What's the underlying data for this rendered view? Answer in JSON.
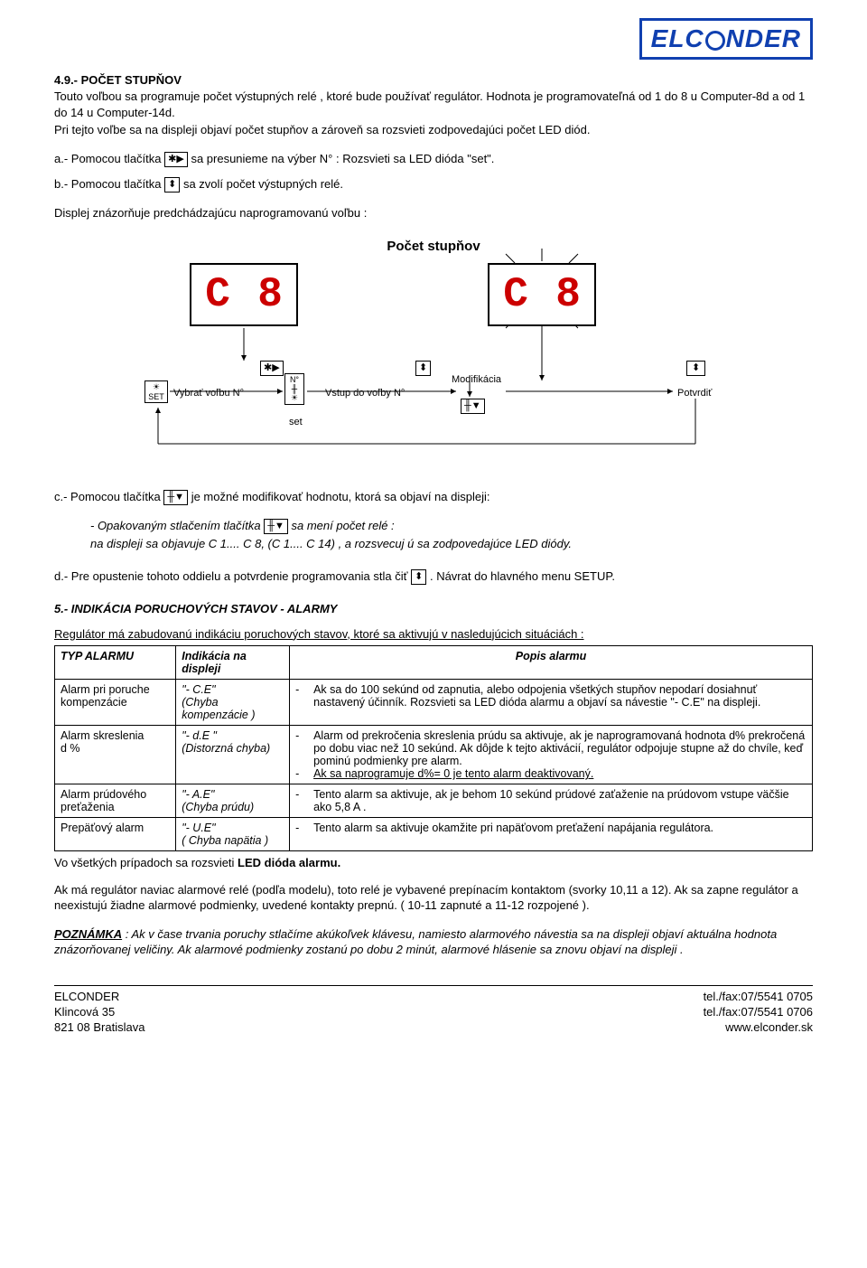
{
  "logo": {
    "part1": "ELC",
    "part2": "NDER"
  },
  "sec49": {
    "heading": "4.9.- POČET STUPŇOV",
    "p1": "Touto voľbou sa programuje počet výstupných relé , ktoré bude používať regulátor. Hodnota je programovateľná od 1 do 8 u Computer-8d a od 1 do 14 u Computer-14d.",
    "p2": "Pri tejto voľbe sa na displeji objaví počet stupňov a zároveň sa rozsvieti zodpovedajúci počet LED diód.",
    "a_pre": "a.- Pomocou tlačítka ",
    "a_post": " sa presunieme na výber N° : Rozsvieti sa LED dióda \"set\".",
    "b_pre": "b.- Pomocou tlačítka ",
    "b_post": " sa zvolí počet výstupných relé.",
    "p3": "Displej znázorňuje predchádzajúcu naprogramovanú voľbu :"
  },
  "diagram": {
    "title": "Počet stupňov",
    "digit1": "C",
    "digit2": "8",
    "set_label": "SET",
    "lbl_vybrat": "Vybrať voľbu N°",
    "lbl_set": "set",
    "lbl_n": "N°",
    "lbl_vstup": "Vstup do voľby N°",
    "lbl_modif": "Modifikácia",
    "lbl_potvrdit": "Potvrdiť",
    "icon_star": "✱▶",
    "icon_updown": "⬍",
    "icon_down": "╫▼",
    "icon_cap": "╫"
  },
  "c": {
    "pre": "c.- Pomocou tlačítka ",
    "post": " je možné modifikovať hodnotu, ktorá sa objaví na displeji:",
    "sub1_pre": "- Opakovaným stlačením tlačítka ",
    "sub1_post": " sa mení počet relé :",
    "sub2": "na displeji sa objavuje C 1.... C 8, (C 1.... C 14) , a rozsvecuj ú sa zodpovedajúce LED diódy."
  },
  "d": {
    "pre": "d.- Pre opustenie tohoto oddielu a potvrdenie programovania stla čiť ",
    "post": ". Návrat do hlavného menu SETUP."
  },
  "sec5": {
    "heading": "5.- INDIKÁCIA PORUCHOVÝCH STAVOV - ALARMY",
    "intro": "Regulátor má zabudovanú indikáciu poruchových stavov, ktoré sa aktivujú v nasledujúcich situáciách :"
  },
  "table": {
    "headers": [
      "TYP ALARMU",
      "Indikácia na displeji",
      "Popis alarmu"
    ],
    "rows": [
      {
        "c1": "Alarm pri poruche kompenzácie",
        "c2": "\"- C.E\"\n(Chyba kompenzácie )",
        "c3": [
          "Ak sa do 100 sekúnd od zapnutia, alebo odpojenia všetkých stupňov nepodarí dosiahnuť nastavený účinník. Rozsvieti sa LED dióda alarmu a objaví sa návestie \"- C.E\" na displeji."
        ]
      },
      {
        "c1": "Alarm skreslenia\n    d %",
        "c2": "\"- d.E \"\n(Distorzná chyba)",
        "c3": [
          "Alarm od prekročenia skreslenia prúdu sa aktivuje, ak je naprogramovaná hodnota d% prekročená po dobu viac než 10 sekúnd. Ak dôjde k tejto aktivácií, regulátor odpojuje stupne až do chvíle, keď pominú podmienky pre alarm.",
          "Ak sa naprogramuje d%= 0 je tento alarm deaktivovaný."
        ],
        "c3_underline_last": true
      },
      {
        "c1": "Alarm prúdového preťaženia",
        "c2": "\"- A.E\"\n(Chyba prúdu)",
        "c3": [
          "Tento alarm sa aktivuje, ak je behom 10 sekúnd prúdové zaťaženie na prúdovom vstupe väčšie ako 5,8 A ."
        ]
      },
      {
        "c1": "Prepäťový alarm",
        "c2": "\"- U.E\"\n( Chyba napätia )",
        "c3": [
          "Tento alarm sa aktivuje okamžite pri napäťovom preťažení napájania regulátora."
        ]
      }
    ]
  },
  "after_table": {
    "p1": "Vo všetkých prípadoch sa rozsvieti LED dióda alarmu.",
    "p2": "Ak má regulátor naviac alarmové relé (podľa modelu), toto relé je vybavené prepínacím kontaktom (svorky 10,11 a 12). Ak sa zapne regulátor a neexistujú žiadne alarmové podmienky, uvedené kontakty prepnú. ( 10-11 zapnuté a 11-12 rozpojené )."
  },
  "note": {
    "lead": "POZNÁMKA",
    "text": " : Ak v čase trvania poruchy stlačíme akúkoľvek klávesu, namiesto alarmového návestia sa na displeji objaví aktuálna hodnota znázorňovanej veličiny. Ak alarmové podmienky zostanú po dobu 2 minút, alarmové hlásenie sa znovu objaví na displeji ."
  },
  "footer": {
    "l1": "ELCONDER",
    "l2": "Klincová 35",
    "l3": "821 08 Bratislava",
    "r1": "tel./fax:07/5541 0705",
    "r2": "tel./fax:07/5541 0706",
    "r3": "www.elconder.sk"
  }
}
